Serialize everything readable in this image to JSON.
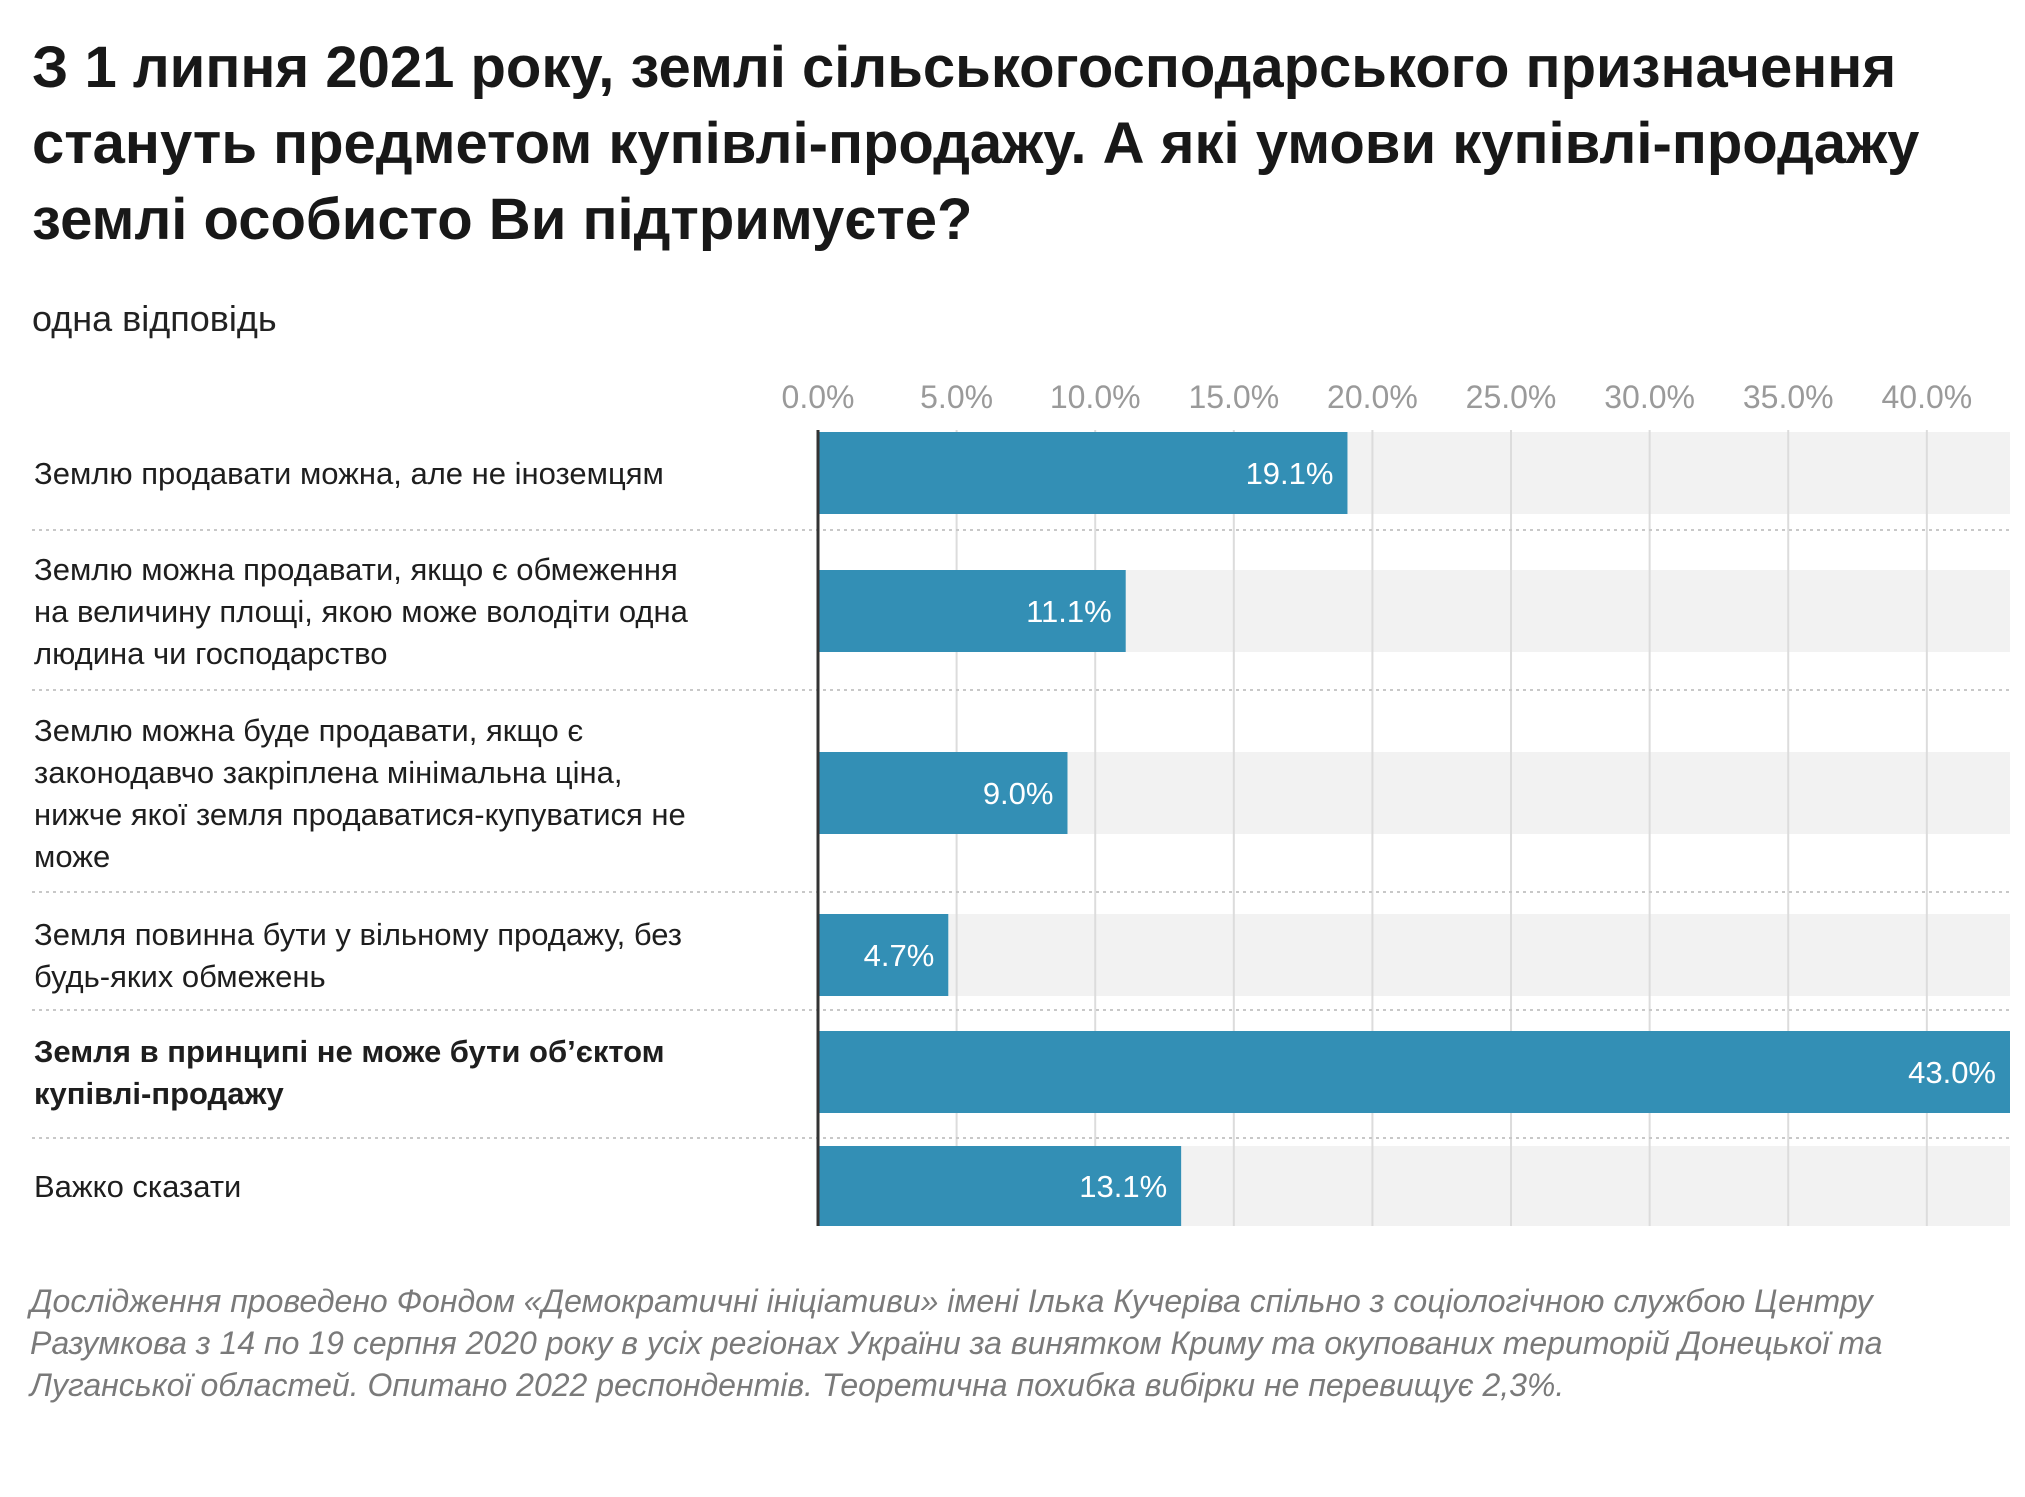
{
  "title": "З 1 липня 2021 року, землі сільськогосподарського призначення стануть предметом купівлі-продажу. А які умови купівлі-продажу землі особисто Ви підтримуєте?",
  "subtitle": "одна відповідь",
  "footnote": "Дослідження проведено Фондом «Демократичні ініціативи» імені Ілька Кучеріва спільно з соціологічною службою Центру Разумкова з 14 по 19 серпня 2020 року в усіх регіонах України за винятком Криму та окупованих територій Донецької та Луганської областей. Опитано 2022 респондентів. Теоретична похибка вибірки не перевищує 2,3%.",
  "colors": {
    "bar": "#338fb5",
    "track": "#f2f2f2",
    "axis": "#333333",
    "grid": "#dcdcdc",
    "tick": "#9a9a9a",
    "value_text": "#ffffff"
  },
  "chart_data": {
    "type": "bar",
    "orientation": "horizontal",
    "categories": [
      [
        "Землю продавати можна, але не іноземцям"
      ],
      [
        "Землю можна продавати, якщо є обмеження",
        "на величину площі, якою може володіти одна",
        "людина чи господарство"
      ],
      [
        "Землю можна буде продавати, якщо є",
        "законодавчо закріплена мінімальна ціна,",
        "нижче якої земля продаватися-купуватися не",
        "може"
      ],
      [
        "Земля повинна бути у вільному продажу, без",
        "будь-яких обмежень"
      ],
      [
        "Земля в принципі не може бути об’єктом",
        "купівлі-продажу"
      ],
      [
        "Важко сказати"
      ]
    ],
    "bold_category_index": 4,
    "values": [
      19.1,
      11.1,
      9.0,
      4.7,
      43.0,
      13.1
    ],
    "value_labels": [
      "19.1%",
      "11.1%",
      "9.0%",
      "4.7%",
      "43.0%",
      "13.1%"
    ],
    "xticks": [
      0,
      5,
      10,
      15,
      20,
      25,
      30,
      35,
      40
    ],
    "xtick_labels": [
      "0.0%",
      "5.0%",
      "10.0%",
      "15.0%",
      "20.0%",
      "25.0%",
      "30.0%",
      "35.0%",
      "40.0%"
    ],
    "xlim": [
      0,
      43
    ],
    "grid": true,
    "xaxis_position": "top"
  }
}
